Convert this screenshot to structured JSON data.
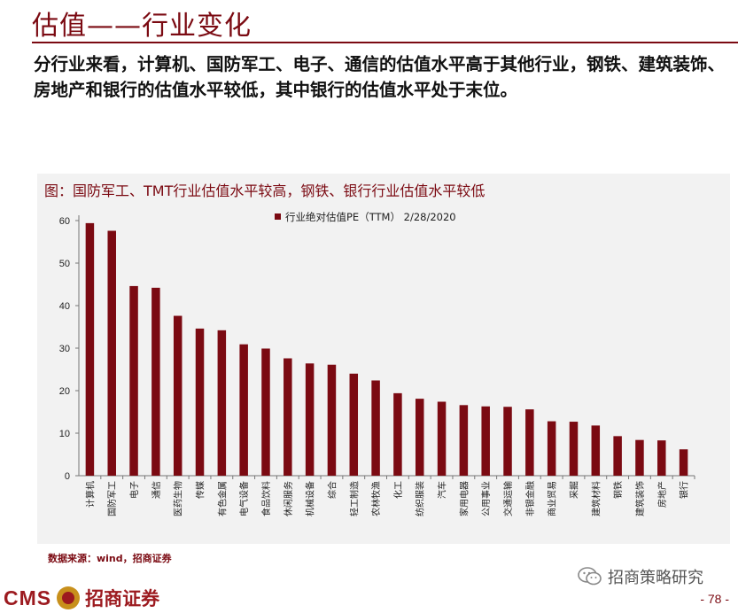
{
  "page": {
    "title": "估值——行业变化",
    "intro": "分行业来看，计算机、国防军工、电子、通信的估值水平高于其他行业，钢铁、建筑装饰、房地产和银行的估值水平较低，其中银行的估值水平处于末位。",
    "source": "数据来源：wind，招商证券",
    "footer": {
      "cms": "CMS",
      "brand": "招商证券",
      "wechat": "招商策略研究",
      "page_number": "- 78 -"
    }
  },
  "colors": {
    "brand": "#7b0a12",
    "bar": "#7b0a12",
    "panel": "#f2f2f2"
  },
  "chart_data": {
    "type": "bar",
    "caption": "图：国防军工、TMT行业估值水平较高，钢铁、银行行业估值水平较低",
    "legend": "行业绝对估值PE（TTM） 2/28/2020",
    "legend_position": "top-center",
    "ylim": [
      0,
      60
    ],
    "yticks": [
      0,
      10,
      20,
      30,
      40,
      50,
      60
    ],
    "grid": false,
    "categories": [
      "计算机",
      "国防军工",
      "电子",
      "通信",
      "医药生物",
      "传媒",
      "有色金属",
      "电气设备",
      "食品饮料",
      "休闲服务",
      "机械设备",
      "综合",
      "轻工制造",
      "农林牧渔",
      "化工",
      "纺织服装",
      "汽车",
      "家用电器",
      "公用事业",
      "交通运输",
      "非银金融",
      "商业贸易",
      "采掘",
      "建筑材料",
      "钢铁",
      "建筑装饰",
      "房地产",
      "银行"
    ],
    "series": [
      {
        "name": "行业绝对估值PE（TTM） 2/28/2020",
        "values": [
          59.4,
          57.6,
          44.6,
          44.2,
          37.6,
          34.6,
          34.2,
          30.9,
          29.9,
          27.6,
          26.4,
          26.1,
          24.0,
          22.4,
          19.4,
          18.1,
          17.4,
          16.6,
          16.3,
          16.2,
          15.6,
          12.8,
          12.7,
          11.8,
          9.3,
          8.4,
          8.3,
          6.2
        ]
      }
    ]
  }
}
